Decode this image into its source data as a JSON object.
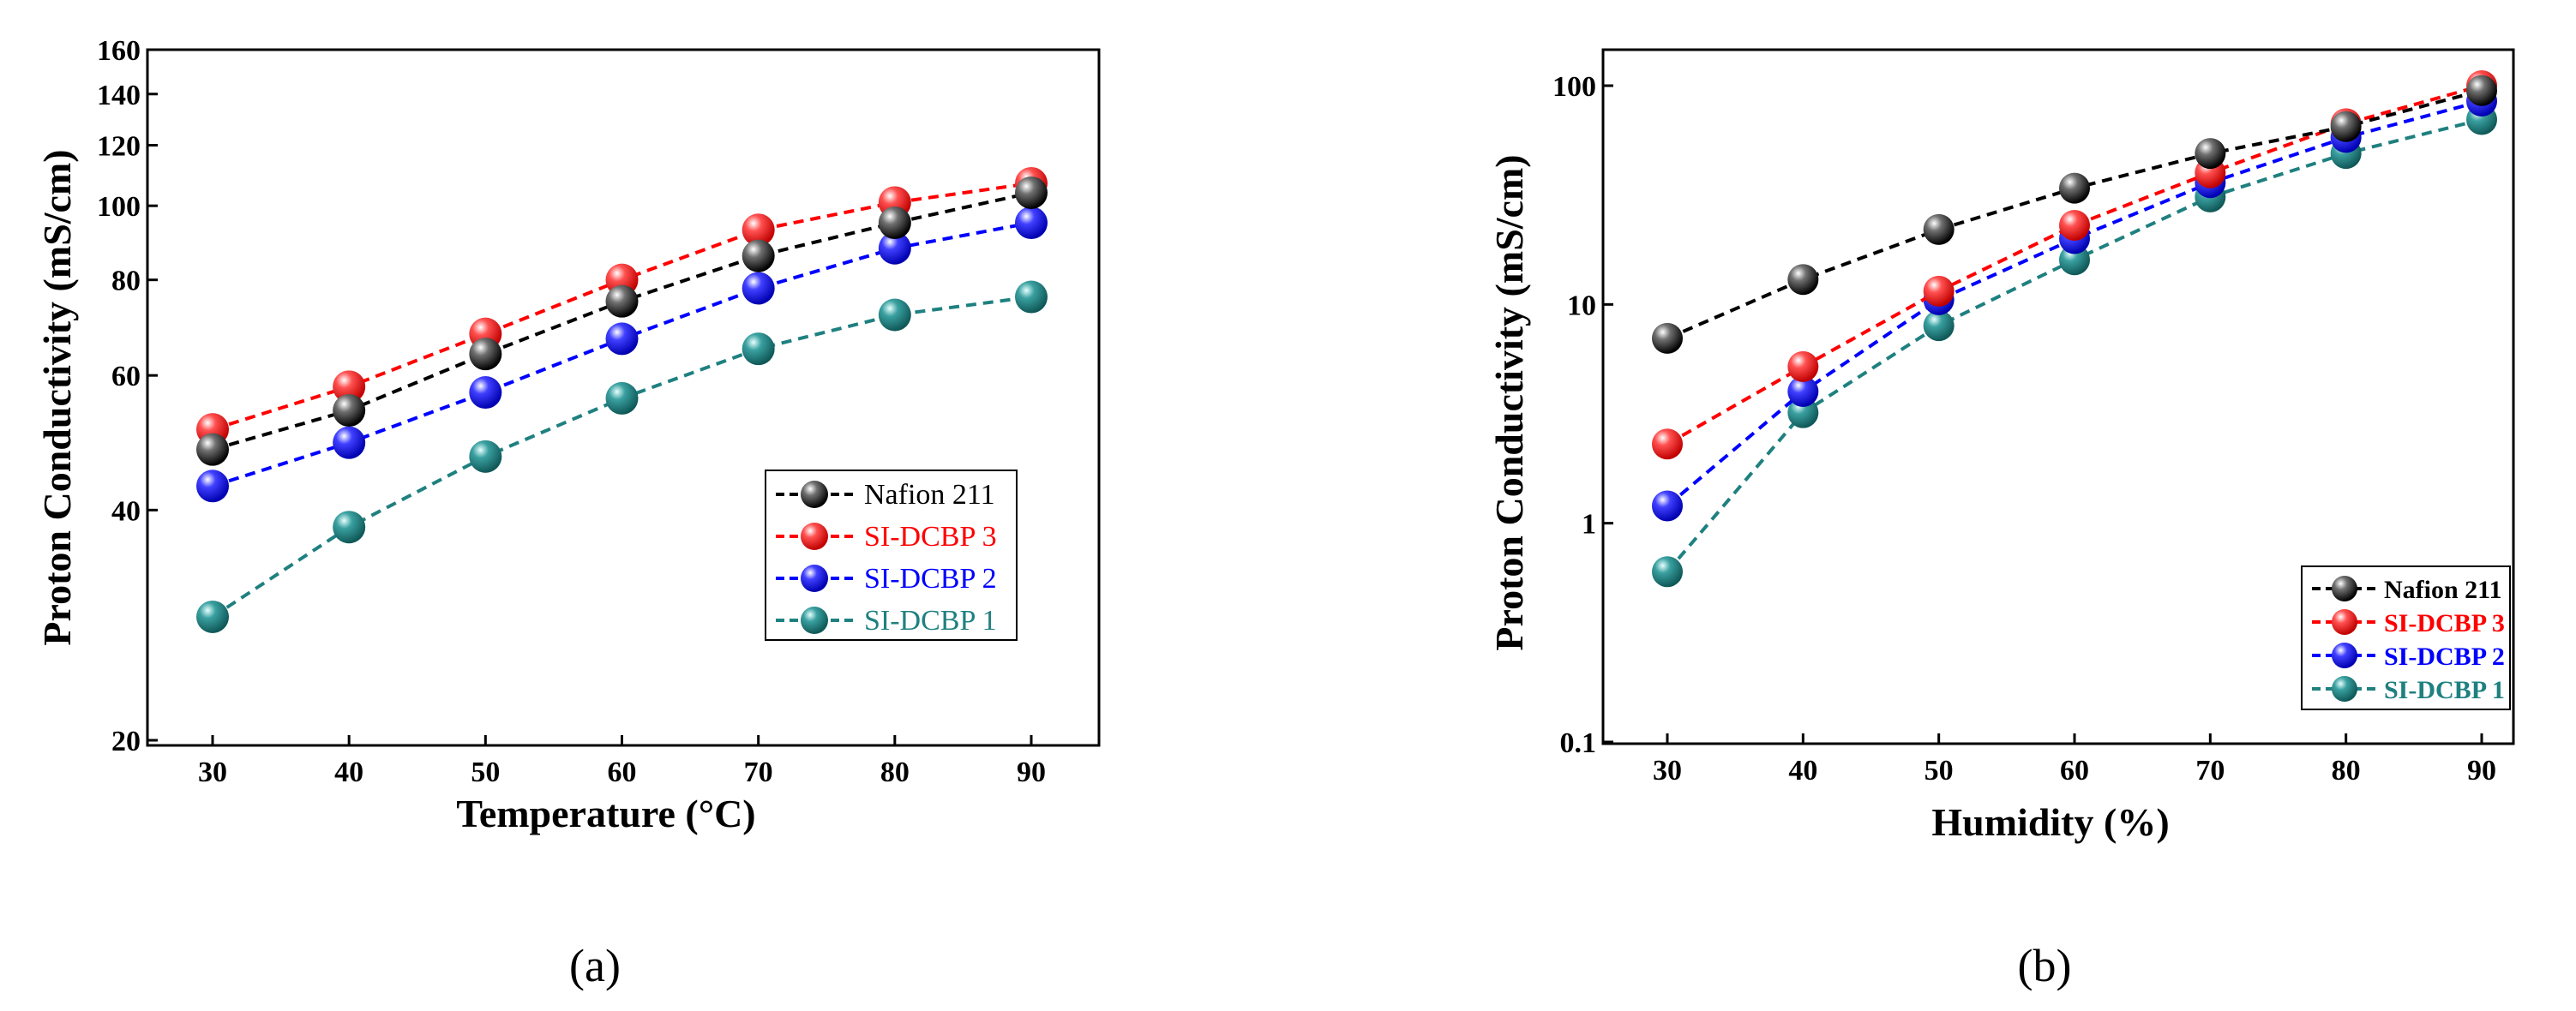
{
  "chart_data": [
    {
      "id": "a",
      "type": "line",
      "panel_label": "(a)",
      "xlabel": "Temperature (°C)",
      "ylabel": "Proton Conductivity (mS/cm)",
      "xlim": [
        25,
        95
      ],
      "ylim": [
        20,
        160
      ],
      "yscale": "log",
      "x": [
        30,
        40,
        50,
        60,
        70,
        80,
        90
      ],
      "xticks": [
        30,
        40,
        50,
        60,
        70,
        80,
        90
      ],
      "yticks": [
        20,
        40,
        60,
        80,
        100,
        120,
        140,
        160
      ],
      "legend_position": "center-right",
      "series": [
        {
          "name": "Nafion 211",
          "color": "#000000",
          "values": [
            48,
            54,
            64,
            75,
            86,
            95,
            104
          ]
        },
        {
          "name": "SI-DCBP 3",
          "color": "#ff0000",
          "values": [
            51,
            58,
            68,
            80,
            93,
            101,
            107
          ]
        },
        {
          "name": "SI-DCBP 2",
          "color": "#0000ff",
          "values": [
            43,
            49,
            57,
            67,
            78,
            88,
            95
          ]
        },
        {
          "name": "SI-DCBP 1",
          "color": "#1f8080",
          "values": [
            29,
            38,
            47,
            56,
            65,
            72,
            76
          ]
        }
      ]
    },
    {
      "id": "b",
      "type": "line",
      "panel_label": "(b)",
      "xlabel": "Humidity (%)",
      "ylabel": "Proton Conductivity (mS/cm)",
      "xlim": [
        25,
        95
      ],
      "ylim": [
        0.1,
        130
      ],
      "yscale": "log",
      "x": [
        30,
        40,
        50,
        60,
        70,
        80,
        90
      ],
      "xticks": [
        30,
        40,
        50,
        60,
        70,
        80,
        90
      ],
      "yticks": [
        0.1,
        1,
        10,
        100
      ],
      "ytick_labels": [
        "0.1",
        "1",
        "10",
        "100"
      ],
      "legend_position": "bottom-right",
      "series": [
        {
          "name": "Nafion 211",
          "color": "#000000",
          "values": [
            7,
            13,
            22,
            34,
            49,
            65,
            95
          ]
        },
        {
          "name": "SI-DCBP 3",
          "color": "#ff0000",
          "values": [
            2.3,
            5.2,
            11.5,
            23,
            40,
            67,
            100
          ]
        },
        {
          "name": "SI-DCBP 2",
          "color": "#0000ff",
          "values": [
            1.2,
            4.0,
            10.5,
            20,
            36,
            58,
            85
          ]
        },
        {
          "name": "SI-DCBP 1",
          "color": "#1f8080",
          "values": [
            0.6,
            3.2,
            8.0,
            16,
            31,
            49,
            70
          ]
        }
      ]
    }
  ]
}
